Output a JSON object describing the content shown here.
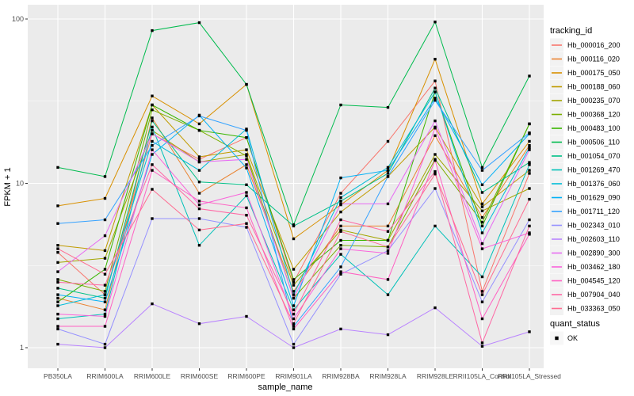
{
  "chart_data": {
    "type": "line",
    "title": "",
    "xlabel": "sample_name",
    "ylabel": "FPKM + 1",
    "y_scale": "log10",
    "y_tick_labels": [
      "1",
      "10",
      "100"
    ],
    "y_ticks": [
      1,
      10,
      100
    ],
    "y_minor_ticks": [
      3.1623,
      31.623
    ],
    "ylim": [
      0.83,
      120
    ],
    "grid": true,
    "legend_position": "right",
    "categories": [
      "PB350LA",
      "RRIM600LA",
      "RRIM600LE",
      "RRIM600SE",
      "RRIM600PE",
      "RRIM901LA",
      "RRIM928BA",
      "RRIM928LA",
      "RRIM928LE",
      "RRII105LA_Control",
      "RRII105LA_Stressed"
    ],
    "series": [
      {
        "name": "Hb_000016_200",
        "color": "#F8766D",
        "values": [
          3.8,
          2.1,
          20,
          14,
          19,
          2.5,
          8.7,
          18,
          42,
          2.2,
          11.5
        ]
      },
      {
        "name": "Hb_000116_020",
        "color": "#EA8331",
        "values": [
          2.0,
          1.7,
          25,
          8.7,
          13,
          2.2,
          5.5,
          5.5,
          19.5,
          6.2,
          17
        ]
      },
      {
        "name": "Hb_000175_050",
        "color": "#D89000",
        "values": [
          7.3,
          8.1,
          34,
          23,
          40,
          4.6,
          7.4,
          12,
          57,
          7.5,
          18
        ]
      },
      {
        "name": "Hb_000188_060",
        "color": "#C09B00",
        "values": [
          4.2,
          3.9,
          30,
          14.5,
          16,
          3.0,
          6.7,
          11,
          22,
          7.2,
          12
        ]
      },
      {
        "name": "Hb_000235_070",
        "color": "#A3A500",
        "values": [
          3.3,
          3.5,
          21,
          13.5,
          15,
          2.4,
          5.2,
          4.5,
          15,
          6.8,
          9.3
        ]
      },
      {
        "name": "Hb_000368_120",
        "color": "#7CAE00",
        "values": [
          2.6,
          2.2,
          28,
          21,
          14.7,
          2.0,
          4.2,
          4.1,
          14,
          5.8,
          23
        ]
      },
      {
        "name": "Hb_000483_100",
        "color": "#39B600",
        "values": [
          1.9,
          3.0,
          30,
          21,
          19,
          2.6,
          4.5,
          4.5,
          36,
          5.5,
          23
        ]
      },
      {
        "name": "Hb_000506_110",
        "color": "#00BB4E",
        "values": [
          12.5,
          11,
          85,
          95,
          40,
          5.6,
          30,
          29,
          96,
          12.5,
          45
        ]
      },
      {
        "name": "Hb_001054_070",
        "color": "#00C087",
        "values": [
          2.3,
          2.0,
          24,
          10.2,
          9.8,
          5.5,
          7.8,
          11.5,
          38,
          8.8,
          13.4
        ]
      },
      {
        "name": "Hb_001269_470",
        "color": "#00C0B8",
        "values": [
          1.5,
          1.6,
          22,
          4.2,
          8.4,
          1.7,
          3.7,
          2.1,
          5.5,
          2.7,
          13
        ]
      },
      {
        "name": "Hb_001376_060",
        "color": "#00BCD8",
        "values": [
          1.8,
          2.1,
          18,
          12,
          21.4,
          2.1,
          8.2,
          12.5,
          36,
          5.0,
          16.5
        ]
      },
      {
        "name": "Hb_001629_090",
        "color": "#00B0F6",
        "values": [
          2.1,
          1.9,
          15,
          26,
          12.4,
          1.8,
          10.8,
          12,
          33,
          9.8,
          20
        ]
      },
      {
        "name": "Hb_001711_120",
        "color": "#35A2FF",
        "values": [
          5.7,
          6.0,
          17,
          25.7,
          21,
          1.35,
          3.1,
          11,
          32,
          12,
          20.3
        ]
      },
      {
        "name": "Hb_002343_010",
        "color": "#9590FF",
        "values": [
          1.3,
          1.05,
          6.1,
          6.1,
          5.4,
          1.05,
          2.8,
          3.9,
          9.3,
          1.9,
          6.0
        ]
      },
      {
        "name": "Hb_002603_110",
        "color": "#B983FF",
        "values": [
          1.05,
          1.0,
          1.85,
          1.4,
          1.55,
          1.0,
          1.3,
          1.2,
          1.75,
          1.02,
          1.25
        ]
      },
      {
        "name": "Hb_002890_300",
        "color": "#E76BF3",
        "values": [
          2.9,
          4.8,
          20,
          13.5,
          14,
          2.0,
          7.5,
          7.5,
          24,
          4.3,
          16
        ]
      },
      {
        "name": "Hb_003462_180",
        "color": "#FA62DB",
        "values": [
          1.6,
          1.55,
          16,
          7.4,
          8.8,
          1.5,
          4.0,
          3.75,
          21.7,
          4.0,
          5.0
        ]
      },
      {
        "name": "Hb_004545_120",
        "color": "#FF61C3",
        "values": [
          1.35,
          1.35,
          12,
          7.8,
          7.1,
          1.3,
          2.9,
          2.6,
          13.8,
          1.5,
          4.9
        ]
      },
      {
        "name": "Hb_007904_040",
        "color": "#FF67A4",
        "values": [
          2.5,
          2.4,
          13,
          7.0,
          6.4,
          1.6,
          6.0,
          5.1,
          11.8,
          1.07,
          5.5
        ]
      },
      {
        "name": "Hb_033363_050",
        "color": "#FF6C91",
        "values": [
          4.0,
          2.8,
          9.2,
          5.2,
          5.7,
          1.4,
          5.1,
          4.1,
          11.4,
          2.1,
          8.0
        ]
      }
    ],
    "legend": {
      "color_title": "tracking_id",
      "shape_title": "quant_status",
      "shape_items": [
        {
          "label": "OK",
          "marker": "black-square"
        }
      ]
    },
    "theme": {
      "panel_bg": "#EBEBEB",
      "grid_color": "#FFFFFF",
      "point_color": "#000000",
      "axis_text_color": "#4D4D4D",
      "legend_key_bg": "#F2F2F2"
    }
  }
}
